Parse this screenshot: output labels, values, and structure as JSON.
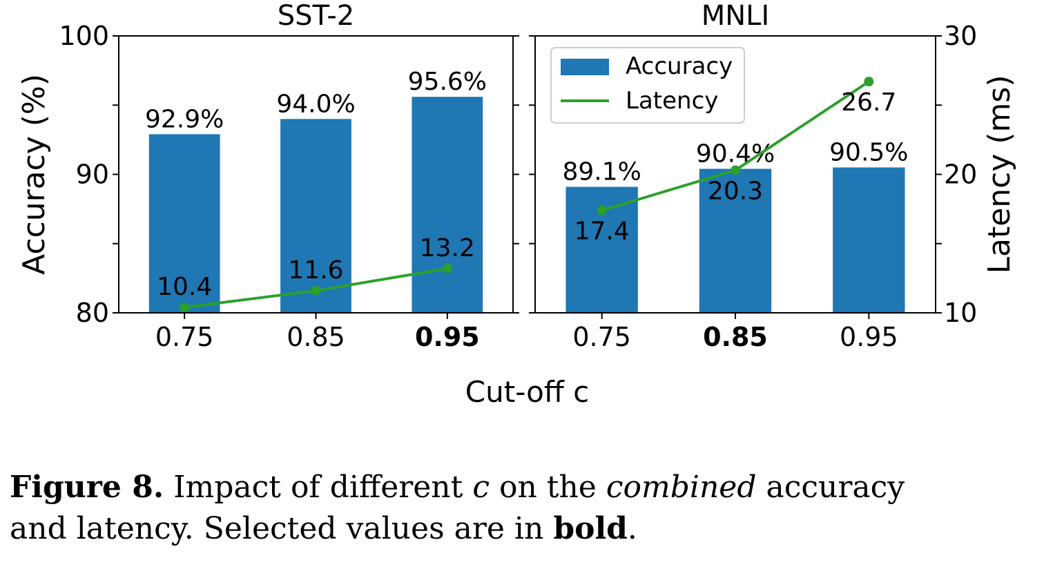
{
  "chart_data": [
    {
      "type": "bar",
      "title": "SST-2",
      "xlabel": "Cut-off c",
      "ylabel": "Accuracy (%)",
      "ylim": [
        80,
        100
      ],
      "y_ticks": [
        "80",
        "90",
        "100"
      ],
      "categories": [
        "0.75",
        "0.85",
        "0.95"
      ],
      "selected_category": "0.95",
      "series": [
        {
          "name": "Accuracy",
          "kind": "bar",
          "axis": "left",
          "color": "#1f77b4",
          "values": [
            92.9,
            94.0,
            95.6
          ],
          "labels": [
            "92.9%",
            "94.0%",
            "95.6%"
          ]
        },
        {
          "name": "Latency",
          "kind": "line",
          "axis": "right",
          "color": "#2ca02c",
          "values": [
            10.4,
            11.6,
            13.2
          ],
          "labels": [
            "10.4",
            "11.6",
            "13.2"
          ]
        }
      ],
      "y2lim": [
        10,
        30
      ]
    },
    {
      "type": "bar",
      "title": "MNLI",
      "xlabel": "Cut-off c",
      "y2label": "Latency (ms)",
      "ylim": [
        80,
        100
      ],
      "y2lim": [
        10,
        30
      ],
      "y2_ticks": [
        "10",
        "20",
        "30"
      ],
      "categories": [
        "0.75",
        "0.85",
        "0.95"
      ],
      "selected_category": "0.85",
      "legend_position": "top-left",
      "series": [
        {
          "name": "Accuracy",
          "kind": "bar",
          "axis": "left",
          "color": "#1f77b4",
          "values": [
            89.1,
            90.4,
            90.5
          ],
          "labels": [
            "89.1%",
            "90.4%",
            "90.5%"
          ]
        },
        {
          "name": "Latency",
          "kind": "line",
          "axis": "right",
          "color": "#2ca02c",
          "values": [
            17.4,
            20.3,
            26.7
          ],
          "labels": [
            "17.4",
            "20.3",
            "26.7"
          ]
        }
      ]
    }
  ],
  "shared_xlabel": "Cut-off c",
  "caption": {
    "label": "Figure 8.",
    "part1": " Impact of different ",
    "var": "c",
    "part2": " on the ",
    "emph": "combined",
    "part3": " accuracy",
    "line2a": "and latency. Selected values are in ",
    "bold_word": "bold",
    "end": "."
  }
}
